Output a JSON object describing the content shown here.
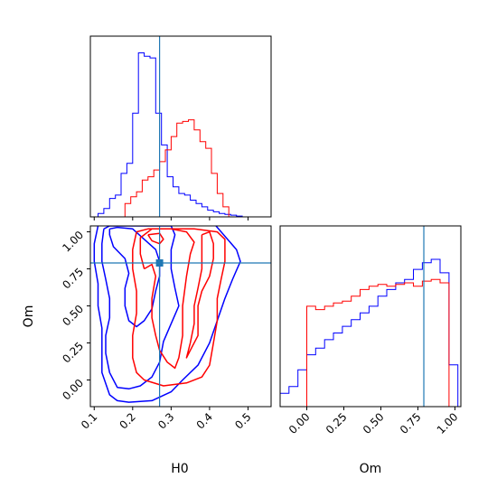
{
  "chart_data": {
    "type": "corner",
    "parameters": [
      {
        "name": "H0",
        "label": "H0",
        "range": [
          0.09,
          0.56
        ],
        "ticks": [
          0.1,
          0.2,
          0.3,
          0.4,
          0.5
        ],
        "tick_labels": [
          "0.1",
          "0.2",
          "0.3",
          "0.4",
          "0.5"
        ]
      },
      {
        "name": "Om",
        "label": "Om",
        "range": [
          -0.18,
          1.04
        ],
        "ticks": [
          0.0,
          0.25,
          0.5,
          0.75,
          1.0
        ],
        "tick_labels": [
          "0.00",
          "0.25",
          "0.50",
          "0.75",
          "1.00"
        ]
      }
    ],
    "truth": {
      "H0": 0.27,
      "Om": 0.79
    },
    "colors": {
      "series_a": "#0000ff",
      "series_b": "#ff0000",
      "truth": "#1f77b4"
    },
    "panels": [
      {
        "id": "hist-H0",
        "type": "histogram",
        "x_range": [
          0.09,
          0.56
        ],
        "y_max": 1.0,
        "series": [
          {
            "color": "#0000ff",
            "edges": [
              0.09,
              0.11,
              0.125,
              0.14,
              0.155,
              0.17,
              0.185,
              0.2,
              0.215,
              0.23,
              0.245,
              0.26,
              0.275,
              0.29,
              0.305,
              0.32,
              0.335,
              0.35,
              0.365,
              0.38,
              0.395,
              0.41,
              0.425,
              0.44,
              0.455,
              0.47,
              0.485,
              0.5
            ],
            "counts": [
              0,
              0.02,
              0.05,
              0.11,
              0.13,
              0.26,
              0.32,
              0.62,
              0.98,
              0.96,
              0.95,
              0.62,
              0.43,
              0.24,
              0.18,
              0.14,
              0.13,
              0.1,
              0.08,
              0.06,
              0.04,
              0.03,
              0.02,
              0.015,
              0.01,
              0.005,
              0
            ]
          },
          {
            "color": "#ff0000",
            "edges": [
              0.18,
              0.195,
              0.21,
              0.225,
              0.24,
              0.255,
              0.27,
              0.285,
              0.3,
              0.315,
              0.33,
              0.345,
              0.36,
              0.375,
              0.39,
              0.405,
              0.42,
              0.435,
              0.45
            ],
            "counts": [
              0.08,
              0.12,
              0.15,
              0.22,
              0.24,
              0.28,
              0.33,
              0.4,
              0.48,
              0.56,
              0.57,
              0.58,
              0.52,
              0.45,
              0.41,
              0.26,
              0.14,
              0.06
            ]
          }
        ]
      },
      {
        "id": "contour-H0-Om",
        "type": "contour",
        "x_range": [
          0.09,
          0.56
        ],
        "y_range": [
          -0.18,
          1.04
        ],
        "series": [
          {
            "color": "#0000ff",
            "levels": [
              [
                [
                  0.14,
                  1.02
                ],
                [
                  0.16,
                  1.03
                ],
                [
                  0.2,
                  1.02
                ],
                [
                  0.23,
                  0.95
                ],
                [
                  0.26,
                  0.88
                ],
                [
                  0.27,
                  0.8
                ],
                [
                  0.27,
                  0.7
                ],
                [
                  0.26,
                  0.6
                ],
                [
                  0.25,
                  0.48
                ],
                [
                  0.23,
                  0.4
                ],
                [
                  0.21,
                  0.36
                ],
                [
                  0.19,
                  0.4
                ],
                [
                  0.18,
                  0.5
                ],
                [
                  0.18,
                  0.62
                ],
                [
                  0.19,
                  0.72
                ],
                [
                  0.18,
                  0.82
                ],
                [
                  0.15,
                  0.9
                ],
                [
                  0.14,
                  0.98
                ],
                [
                  0.14,
                  1.02
                ]
              ],
              [
                [
                  0.125,
                  1.02
                ],
                [
                  0.14,
                  1.04
                ],
                [
                  0.3,
                  1.04
                ],
                [
                  0.31,
                  0.98
                ],
                [
                  0.3,
                  0.88
                ],
                [
                  0.3,
                  0.75
                ],
                [
                  0.31,
                  0.62
                ],
                [
                  0.32,
                  0.5
                ],
                [
                  0.3,
                  0.38
                ],
                [
                  0.28,
                  0.26
                ],
                [
                  0.27,
                  0.12
                ],
                [
                  0.25,
                  0.02
                ],
                [
                  0.22,
                  -0.04
                ],
                [
                  0.19,
                  -0.06
                ],
                [
                  0.16,
                  -0.05
                ],
                [
                  0.14,
                  0.05
                ],
                [
                  0.13,
                  0.18
                ],
                [
                  0.13,
                  0.3
                ],
                [
                  0.14,
                  0.42
                ],
                [
                  0.14,
                  0.55
                ],
                [
                  0.13,
                  0.68
                ],
                [
                  0.12,
                  0.8
                ],
                [
                  0.12,
                  0.92
                ],
                [
                  0.125,
                  1.02
                ]
              ],
              [
                [
                  0.11,
                  1.04
                ],
                [
                  0.135,
                  1.06
                ],
                [
                  0.41,
                  1.06
                ],
                [
                  0.42,
                  1.03
                ],
                [
                  0.47,
                  0.88
                ],
                [
                  0.48,
                  0.8
                ],
                [
                  0.46,
                  0.68
                ],
                [
                  0.44,
                  0.55
                ],
                [
                  0.42,
                  0.4
                ],
                [
                  0.4,
                  0.25
                ],
                [
                  0.37,
                  0.1
                ],
                [
                  0.33,
                  0.0
                ],
                [
                  0.3,
                  -0.08
                ],
                [
                  0.25,
                  -0.14
                ],
                [
                  0.19,
                  -0.15
                ],
                [
                  0.16,
                  -0.14
                ],
                [
                  0.14,
                  -0.1
                ],
                [
                  0.12,
                  0.05
                ],
                [
                  0.12,
                  0.2
                ],
                [
                  0.12,
                  0.35
                ],
                [
                  0.11,
                  0.5
                ],
                [
                  0.11,
                  0.65
                ],
                [
                  0.1,
                  0.8
                ],
                [
                  0.1,
                  0.92
                ],
                [
                  0.11,
                  1.04
                ]
              ]
            ]
          },
          {
            "color": "#ff0000",
            "levels": [
              [
                [
                  0.24,
                  0.98
                ],
                [
                  0.27,
                  0.99
                ],
                [
                  0.28,
                  0.95
                ],
                [
                  0.27,
                  0.92
                ],
                [
                  0.25,
                  0.94
                ],
                [
                  0.24,
                  0.98
                ]
              ],
              [
                [
                  0.23,
                  0.75
                ],
                [
                  0.25,
                  0.78
                ],
                [
                  0.26,
                  0.7
                ],
                [
                  0.25,
                  0.55
                ],
                [
                  0.25,
                  0.42
                ],
                [
                  0.26,
                  0.3
                ],
                [
                  0.27,
                  0.2
                ],
                [
                  0.29,
                  0.12
                ],
                [
                  0.31,
                  0.08
                ],
                [
                  0.32,
                  0.15
                ],
                [
                  0.33,
                  0.3
                ],
                [
                  0.33,
                  0.5
                ],
                [
                  0.34,
                  0.7
                ],
                [
                  0.35,
                  0.85
                ],
                [
                  0.36,
                  0.93
                ],
                [
                  0.34,
                  1.0
                ],
                [
                  0.3,
                  1.02
                ],
                [
                  0.25,
                  1.02
                ],
                [
                  0.22,
                  0.96
                ],
                [
                  0.22,
                  0.85
                ],
                [
                  0.23,
                  0.75
                ]
              ],
              [
                [
                  0.38,
                  0.98
                ],
                [
                  0.4,
                  1.0
                ],
                [
                  0.41,
                  0.92
                ],
                [
                  0.41,
                  0.82
                ],
                [
                  0.4,
                  0.7
                ],
                [
                  0.38,
                  0.6
                ],
                [
                  0.37,
                  0.5
                ],
                [
                  0.37,
                  0.4
                ],
                [
                  0.37,
                  0.3
                ],
                [
                  0.35,
                  0.2
                ],
                [
                  0.34,
                  0.15
                ],
                [
                  0.35,
                  0.25
                ],
                [
                  0.36,
                  0.38
                ],
                [
                  0.36,
                  0.5
                ],
                [
                  0.37,
                  0.62
                ],
                [
                  0.38,
                  0.75
                ],
                [
                  0.38,
                  0.88
                ],
                [
                  0.38,
                  0.98
                ]
              ],
              [
                [
                  0.21,
                  1.0
                ],
                [
                  0.24,
                  1.02
                ],
                [
                  0.36,
                  1.02
                ],
                [
                  0.42,
                  1.0
                ],
                [
                  0.44,
                  0.95
                ],
                [
                  0.44,
                  0.8
                ],
                [
                  0.43,
                  0.68
                ],
                [
                  0.42,
                  0.55
                ],
                [
                  0.42,
                  0.4
                ],
                [
                  0.41,
                  0.25
                ],
                [
                  0.4,
                  0.1
                ],
                [
                  0.38,
                  0.02
                ],
                [
                  0.34,
                  -0.02
                ],
                [
                  0.28,
                  -0.04
                ],
                [
                  0.23,
                  0.0
                ],
                [
                  0.21,
                  0.05
                ],
                [
                  0.2,
                  0.15
                ],
                [
                  0.2,
                  0.3
                ],
                [
                  0.21,
                  0.45
                ],
                [
                  0.21,
                  0.6
                ],
                [
                  0.2,
                  0.75
                ],
                [
                  0.2,
                  0.88
                ],
                [
                  0.21,
                  1.0
                ]
              ]
            ]
          }
        ]
      },
      {
        "id": "hist-Om",
        "type": "histogram",
        "x_range": [
          -0.18,
          1.04
        ],
        "y_max": 1.0,
        "series": [
          {
            "color": "#0000ff",
            "edges": [
              -0.18,
              -0.12,
              -0.06,
              0.0,
              0.06,
              0.12,
              0.18,
              0.24,
              0.3,
              0.36,
              0.42,
              0.48,
              0.54,
              0.6,
              0.66,
              0.72,
              0.78,
              0.84,
              0.9,
              0.96,
              1.02
            ],
            "counts": [
              0.08,
              0.12,
              0.22,
              0.31,
              0.35,
              0.4,
              0.44,
              0.48,
              0.52,
              0.56,
              0.6,
              0.66,
              0.7,
              0.74,
              0.76,
              0.82,
              0.86,
              0.88,
              0.8,
              0.25
            ]
          },
          {
            "color": "#ff0000",
            "edges": [
              0.0,
              0.06,
              0.12,
              0.18,
              0.24,
              0.3,
              0.36,
              0.42,
              0.48,
              0.54,
              0.6,
              0.66,
              0.72,
              0.78,
              0.84,
              0.9,
              0.96,
              1.0
            ],
            "counts": [
              0.6,
              0.58,
              0.6,
              0.62,
              0.63,
              0.66,
              0.7,
              0.72,
              0.73,
              0.72,
              0.73,
              0.74,
              0.72,
              0.75,
              0.76,
              0.74,
              0.0
            ]
          }
        ]
      }
    ]
  }
}
